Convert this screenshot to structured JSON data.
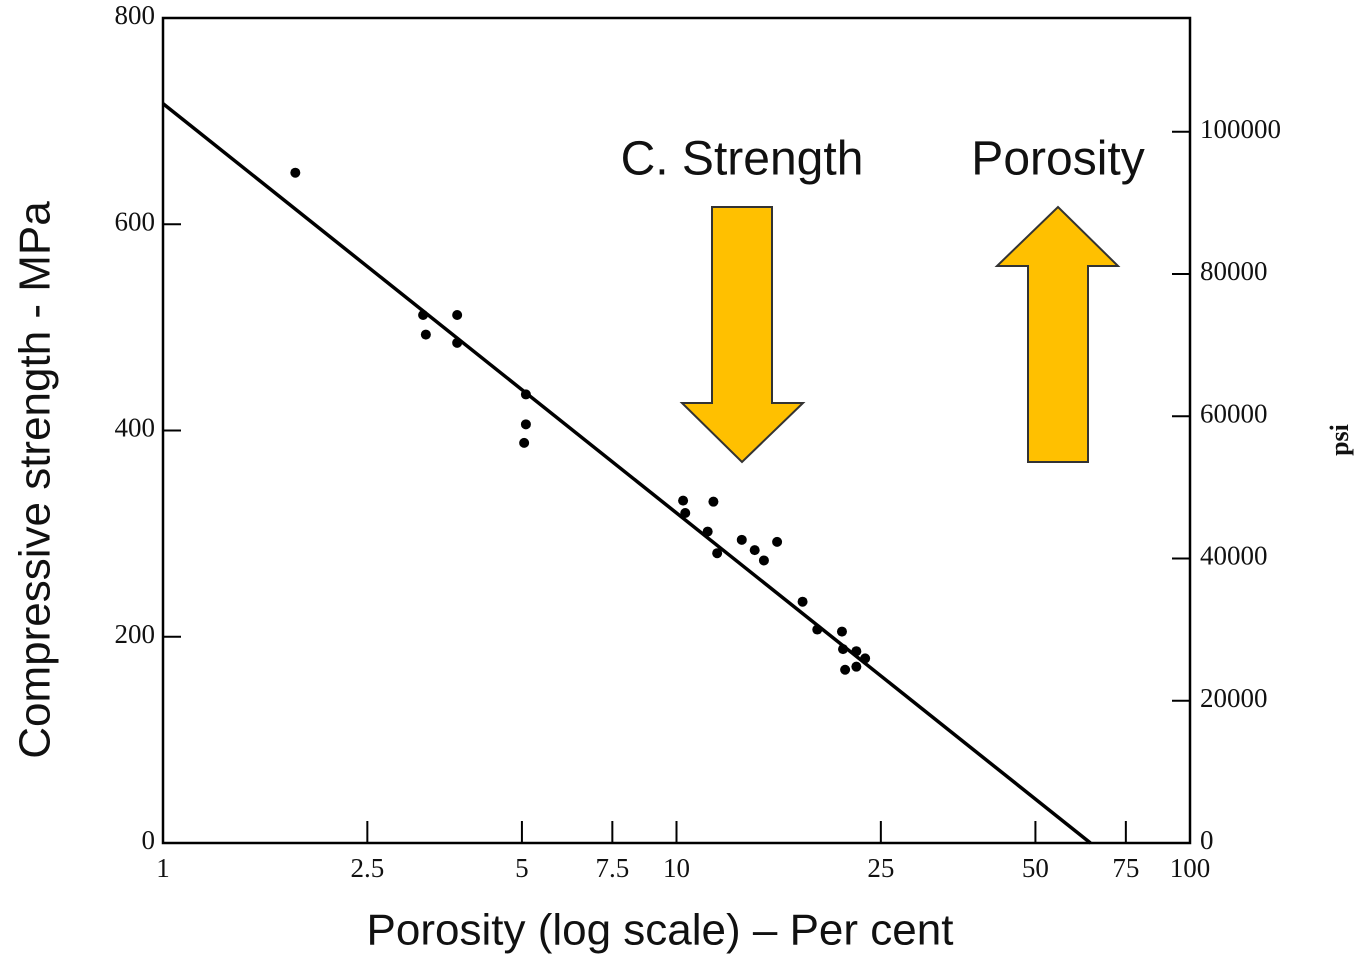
{
  "chart_data": {
    "type": "scatter",
    "xlabel": "Porosity (log scale) – Per cent",
    "ylabel": "Compressive strength - MPa",
    "y2label": "psi",
    "xscale": "log",
    "xlim": [
      1,
      100
    ],
    "xticks": [
      1,
      2.5,
      5,
      7.5,
      10,
      25,
      50,
      75,
      100
    ],
    "ylim": [
      0,
      800
    ],
    "yticks": [
      0,
      200,
      400,
      600,
      800
    ],
    "y2lim": [
      0,
      116000
    ],
    "y2ticks": [
      0,
      20000,
      40000,
      60000,
      80000,
      100000
    ],
    "annotations": [
      "C. Strength",
      "Porosity"
    ],
    "series": [
      {
        "name": null,
        "color": "#000000",
        "x": [
          1.81,
          3.21,
          3.25,
          3.74,
          3.74,
          5.09,
          5.09,
          5.05,
          10.3,
          10.4,
          11.5,
          11.8,
          12.0,
          13.4,
          14.2,
          14.8,
          15.7,
          17.6,
          18.8,
          21.0,
          21.1,
          21.3,
          22.4,
          22.4,
          23.3
        ],
        "values": [
          650,
          512,
          493,
          512,
          485,
          435,
          406,
          388,
          332,
          320,
          302,
          331,
          281,
          294,
          284,
          274,
          292,
          234,
          207,
          205,
          188,
          168,
          171,
          186,
          179
        ]
      }
    ],
    "fit": {
      "x": [
        1,
        64
      ],
      "values": [
        717,
        0
      ],
      "color": "#000000"
    }
  }
}
